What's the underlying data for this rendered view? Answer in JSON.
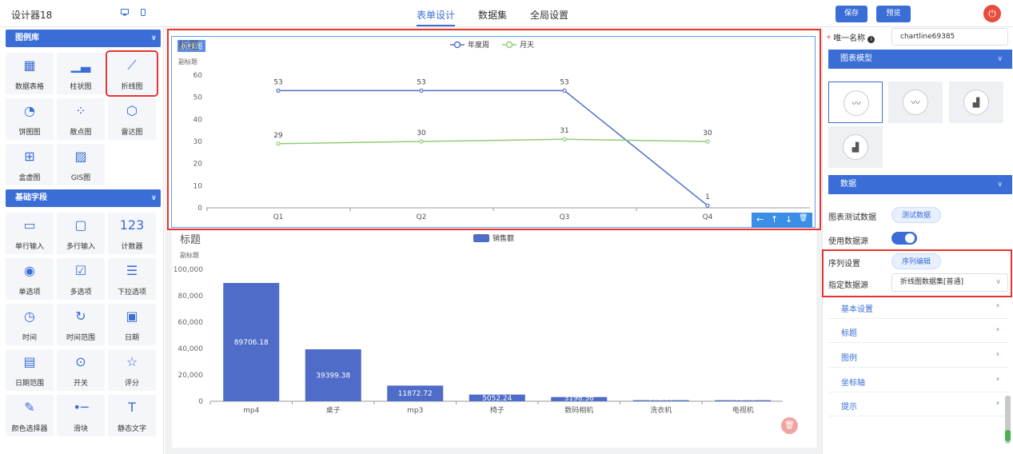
{
  "app": {
    "title": "设计器18"
  },
  "header": {
    "tabs": [
      "表单设计",
      "数据集",
      "全局设置"
    ],
    "save": "保存",
    "preview": "预览"
  },
  "left": {
    "sections": [
      "图例库",
      "基础字段"
    ],
    "chart_widgets": [
      {
        "label": "数据表格",
        "icon": "table-icon"
      },
      {
        "label": "柱状图",
        "icon": "bar-chart-icon"
      },
      {
        "label": "折线图",
        "icon": "line-chart-icon"
      },
      {
        "label": "饼图图",
        "icon": "pie-chart-icon"
      },
      {
        "label": "散点图",
        "icon": "scatter-icon"
      },
      {
        "label": "雷达图",
        "icon": "radar-icon"
      },
      {
        "label": "盒虚图",
        "icon": "boxplot-icon"
      },
      {
        "label": "GIS图",
        "icon": "map-icon"
      }
    ],
    "field_widgets": [
      {
        "label": "单行输入",
        "icon": "input-icon"
      },
      {
        "label": "多行输入",
        "icon": "textarea-icon"
      },
      {
        "label": "计数器",
        "icon": "counter-icon"
      },
      {
        "label": "单选项",
        "icon": "radio-icon"
      },
      {
        "label": "多选项",
        "icon": "checkbox-icon"
      },
      {
        "label": "下拉选项",
        "icon": "list-icon"
      },
      {
        "label": "时间",
        "icon": "clock-icon"
      },
      {
        "label": "时间范围",
        "icon": "time-range-icon"
      },
      {
        "label": "日期",
        "icon": "calendar-icon"
      },
      {
        "label": "日期范围",
        "icon": "date-range-icon"
      },
      {
        "label": "开关",
        "icon": "switch-icon"
      },
      {
        "label": "评分",
        "icon": "star-icon"
      },
      {
        "label": "颜色选择器",
        "icon": "color-picker-icon"
      },
      {
        "label": "滑块",
        "icon": "slider-icon"
      },
      {
        "label": "静态文字",
        "icon": "text-icon"
      }
    ]
  },
  "canvas": {
    "line_tag": "折线图",
    "line_title": "标题",
    "line_subtitle": "副标题",
    "bar_title": "标题",
    "bar_subtitle": "副标题",
    "toolbar": [
      "←",
      "↑",
      "↓",
      "🗑"
    ]
  },
  "chart_data": [
    {
      "type": "line",
      "title": "标题",
      "subtitle": "副标题",
      "categories": [
        "Q1",
        "Q2",
        "Q3",
        "Q4"
      ],
      "series": [
        {
          "name": "年度周",
          "values": [
            53,
            53,
            53,
            1
          ],
          "color": "#5470c6"
        },
        {
          "name": "月天",
          "values": [
            29,
            30,
            31,
            30
          ],
          "color": "#91cc75"
        }
      ],
      "ylim": [
        0,
        60
      ],
      "yticks": [
        0,
        10,
        20,
        30,
        40,
        50,
        60
      ],
      "legend": "top-center"
    },
    {
      "type": "bar",
      "title": "标题",
      "subtitle": "副标题",
      "categories": [
        "mp4",
        "桌子",
        "mp3",
        "椅子",
        "数码相机",
        "洗衣机",
        "电视机"
      ],
      "series": [
        {
          "name": "销售额",
          "values": [
            89706.18,
            39399.38,
            11872.72,
            5052.24,
            3198.36,
            801.88,
            791.88
          ],
          "color": "#4e6cc8"
        }
      ],
      "ylim": [
        0,
        100000
      ],
      "yticks": [
        "0",
        "20,000",
        "40,000",
        "60,000",
        "80,000",
        "100,000"
      ],
      "legend": "top-center"
    }
  ],
  "right": {
    "unique_name_label": "唯一名称",
    "unique_name_value": "chartline69385",
    "model_section": "图表模型",
    "data_section": "数据",
    "test_data_label": "图表测试数据",
    "test_data_btn": "测试数据",
    "use_source_label": "使用数据源",
    "series_label": "序列设置",
    "series_btn": "序列编辑",
    "source_label": "指定数据源",
    "source_value": "折线图数据集[普通]",
    "accordions": [
      "基本设置",
      "标题",
      "图例",
      "坐标轴",
      "提示"
    ]
  }
}
